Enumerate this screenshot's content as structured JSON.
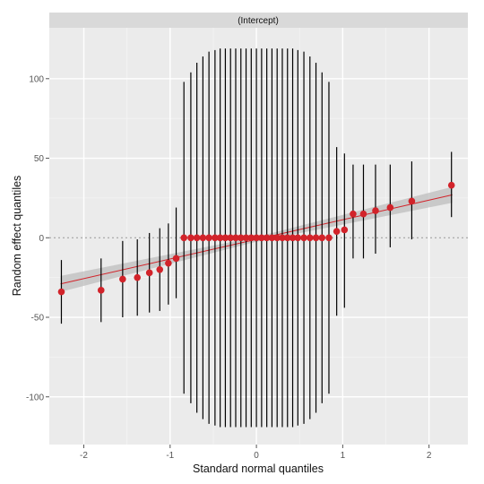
{
  "chart_data": {
    "type": "scatter",
    "panel_label": "(Intercept)",
    "xlabel": "Standard normal quantiles",
    "ylabel": "Random effect quantiles",
    "xlim": [
      -2.4,
      2.45
    ],
    "ylim": [
      -130,
      132
    ],
    "x_ticks": [
      -2,
      -1,
      0,
      1,
      2
    ],
    "y_ticks": [
      -100,
      -50,
      0,
      50,
      100
    ],
    "x_tick_labels": [
      "-2",
      "-1",
      "0",
      "1",
      "2"
    ],
    "y_tick_labels": [
      "-100",
      "-50",
      "0",
      "50",
      "100"
    ],
    "grid": true,
    "reference_line_y": 0,
    "fit_line": {
      "x": [
        -2.27,
        2.27
      ],
      "y": [
        -29,
        27
      ]
    },
    "fit_band": {
      "x": [
        -2.27,
        0,
        2.27
      ],
      "half_width": [
        5,
        1.5,
        5
      ]
    },
    "points": [
      {
        "x": -2.26,
        "y": -34,
        "lo": -54,
        "hi": -14
      },
      {
        "x": -1.8,
        "y": -33,
        "lo": -53,
        "hi": -13
      },
      {
        "x": -1.55,
        "y": -26,
        "lo": -50,
        "hi": -2
      },
      {
        "x": -1.38,
        "y": -25,
        "lo": -49,
        "hi": -1
      },
      {
        "x": -1.24,
        "y": -22,
        "lo": -47,
        "hi": 3
      },
      {
        "x": -1.12,
        "y": -20,
        "lo": -46,
        "hi": 6
      },
      {
        "x": -1.02,
        "y": -16,
        "lo": -42,
        "hi": 9
      },
      {
        "x": -0.93,
        "y": -13,
        "lo": -38,
        "hi": 19
      },
      {
        "x": -0.84,
        "y": 0,
        "lo": -98,
        "hi": 98
      },
      {
        "x": -0.76,
        "y": 0,
        "lo": -104,
        "hi": 104
      },
      {
        "x": -0.69,
        "y": 0,
        "lo": -110,
        "hi": 110
      },
      {
        "x": -0.62,
        "y": 0,
        "lo": -114,
        "hi": 114
      },
      {
        "x": -0.55,
        "y": 0,
        "lo": -117,
        "hi": 117
      },
      {
        "x": -0.48,
        "y": 0,
        "lo": -118,
        "hi": 118
      },
      {
        "x": -0.42,
        "y": 0,
        "lo": -119,
        "hi": 119
      },
      {
        "x": -0.36,
        "y": 0,
        "lo": -119,
        "hi": 119
      },
      {
        "x": -0.3,
        "y": 0,
        "lo": -119,
        "hi": 119
      },
      {
        "x": -0.24,
        "y": 0,
        "lo": -119,
        "hi": 119
      },
      {
        "x": -0.18,
        "y": 0,
        "lo": -119,
        "hi": 119
      },
      {
        "x": -0.12,
        "y": 0,
        "lo": -119,
        "hi": 119
      },
      {
        "x": -0.06,
        "y": 0,
        "lo": -119,
        "hi": 119
      },
      {
        "x": 0.0,
        "y": 0,
        "lo": -119,
        "hi": 119
      },
      {
        "x": 0.06,
        "y": 0,
        "lo": -119,
        "hi": 119
      },
      {
        "x": 0.12,
        "y": 0,
        "lo": -119,
        "hi": 119
      },
      {
        "x": 0.18,
        "y": 0,
        "lo": -119,
        "hi": 119
      },
      {
        "x": 0.24,
        "y": 0,
        "lo": -119,
        "hi": 119
      },
      {
        "x": 0.3,
        "y": 0,
        "lo": -119,
        "hi": 119
      },
      {
        "x": 0.36,
        "y": 0,
        "lo": -119,
        "hi": 119
      },
      {
        "x": 0.42,
        "y": 0,
        "lo": -119,
        "hi": 119
      },
      {
        "x": 0.48,
        "y": 0,
        "lo": -118,
        "hi": 118
      },
      {
        "x": 0.55,
        "y": 0,
        "lo": -117,
        "hi": 117
      },
      {
        "x": 0.62,
        "y": 0,
        "lo": -114,
        "hi": 114
      },
      {
        "x": 0.69,
        "y": 0,
        "lo": -110,
        "hi": 110
      },
      {
        "x": 0.76,
        "y": 0,
        "lo": -104,
        "hi": 104
      },
      {
        "x": 0.84,
        "y": 0,
        "lo": -98,
        "hi": 98
      },
      {
        "x": 0.93,
        "y": 4,
        "lo": -49,
        "hi": 57
      },
      {
        "x": 1.02,
        "y": 5,
        "lo": -44,
        "hi": 53
      },
      {
        "x": 1.12,
        "y": 15,
        "lo": -13,
        "hi": 46
      },
      {
        "x": 1.24,
        "y": 15,
        "lo": -13,
        "hi": 46
      },
      {
        "x": 1.38,
        "y": 17,
        "lo": -10,
        "hi": 46
      },
      {
        "x": 1.55,
        "y": 19,
        "lo": -6,
        "hi": 46
      },
      {
        "x": 1.8,
        "y": 23,
        "lo": -1,
        "hi": 48
      },
      {
        "x": 2.26,
        "y": 33,
        "lo": 13,
        "hi": 54
      }
    ]
  },
  "colors": {
    "panel_bg": "#ebebeb",
    "grid_major": "#ffffff",
    "grid_minor": "#f4f4f4",
    "strip_bg": "#d9d9d9",
    "point": "#d2232a",
    "fit_line": "#d2232a",
    "fit_band": "#bdbdbd",
    "error_bar": "#000000",
    "ref_line": "#ffffff"
  }
}
